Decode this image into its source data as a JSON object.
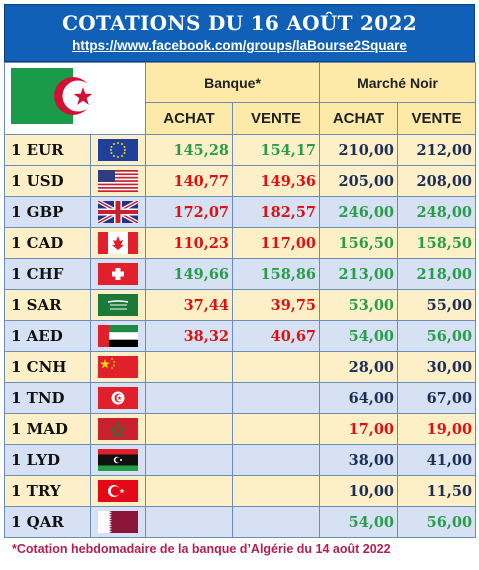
{
  "header": {
    "title": "COTATIONS DU 16 AOÛT 2022",
    "url": "https://www.facebook.com/groups/laBourse2Square"
  },
  "columns": {
    "banque": "Banque*",
    "marche_noir": "Marché Noir",
    "achat": "ACHAT",
    "vente": "VENTE"
  },
  "rows": [
    {
      "currency": "1 EUR",
      "flag": "eu-flag-icon",
      "bank_buy": "145,28",
      "bank_sell": "154,17",
      "black_buy": "210,00",
      "black_sell": "212,00"
    },
    {
      "currency": "1 USD",
      "flag": "us-flag-icon",
      "bank_buy": "140,77",
      "bank_sell": "149,36",
      "black_buy": "205,00",
      "black_sell": "208,00"
    },
    {
      "currency": "1 GBP",
      "flag": "uk-flag-icon",
      "bank_buy": "172,07",
      "bank_sell": "182,57",
      "black_buy": "246,00",
      "black_sell": "248,00"
    },
    {
      "currency": "1 CAD",
      "flag": "ca-flag-icon",
      "bank_buy": "110,23",
      "bank_sell": "117,00",
      "black_buy": "156,50",
      "black_sell": "158,50"
    },
    {
      "currency": "1 CHF",
      "flag": "ch-flag-icon",
      "bank_buy": "149,66",
      "bank_sell": "158,86",
      "black_buy": "213,00",
      "black_sell": "218,00"
    },
    {
      "currency": "1 SAR",
      "flag": "sa-flag-icon",
      "bank_buy": "37,44",
      "bank_sell": "39,75",
      "black_buy": "53,00",
      "black_sell": "55,00"
    },
    {
      "currency": "1 AED",
      "flag": "ae-flag-icon",
      "bank_buy": "38,32",
      "bank_sell": "40,67",
      "black_buy": "54,00",
      "black_sell": "56,00"
    },
    {
      "currency": "1 CNH",
      "flag": "cn-flag-icon",
      "bank_buy": "",
      "bank_sell": "",
      "black_buy": "28,00",
      "black_sell": "30,00"
    },
    {
      "currency": "1 TND",
      "flag": "tn-flag-icon",
      "bank_buy": "",
      "bank_sell": "",
      "black_buy": "64,00",
      "black_sell": "67,00"
    },
    {
      "currency": "1 MAD",
      "flag": "ma-flag-icon",
      "bank_buy": "",
      "bank_sell": "",
      "black_buy": "17,00",
      "black_sell": "19,00"
    },
    {
      "currency": "1 LYD",
      "flag": "ly-flag-icon",
      "bank_buy": "",
      "bank_sell": "",
      "black_buy": "38,00",
      "black_sell": "41,00"
    },
    {
      "currency": "1 TRY",
      "flag": "tr-flag-icon",
      "bank_buy": "",
      "bank_sell": "",
      "black_buy": "10,00",
      "black_sell": "11,50"
    },
    {
      "currency": "1 QAR",
      "flag": "qa-flag-icon",
      "bank_buy": "",
      "bank_sell": "",
      "black_buy": "54,00",
      "black_sell": "56,00"
    }
  ],
  "footer": "*Cotation hebdomadaire de la banque d’Algérie du 14 août 2022",
  "colors": {
    "header_bg": "#1060b8",
    "up": "#2a9d4a",
    "down": "#dd1111",
    "neutral": "#1c2f56",
    "row_light": "#fdf0c8",
    "row_blue": "#d6e2f3",
    "header_cell": "#fde9a8"
  }
}
